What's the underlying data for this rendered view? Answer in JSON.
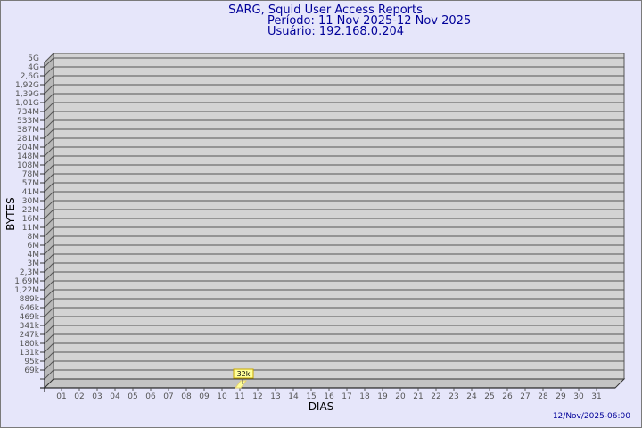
{
  "chart_data": {
    "type": "bar",
    "title": "SARG, Squid User Access Reports",
    "subtitle_lines": [
      "Período: 11 Nov 2025-12 Nov 2025",
      "Usuário: 192.168.0.204"
    ],
    "xlabel": "DIAS",
    "ylabel": "BYTES",
    "y_scale": "log",
    "y_tick_labels": [
      "5G",
      "4G",
      "2,6G",
      "1,92G",
      "1,39G",
      "1,01G",
      "734M",
      "533M",
      "387M",
      "281M",
      "204M",
      "148M",
      "108M",
      "78M",
      "57M",
      "41M",
      "30M",
      "22M",
      "16M",
      "11M",
      "8M",
      "6M",
      "4M",
      "3M",
      "2,3M",
      "1,69M",
      "1,22M",
      "889k",
      "646k",
      "469k",
      "341k",
      "247k",
      "180k",
      "131k",
      "95k",
      "69k"
    ],
    "categories": [
      "01",
      "02",
      "03",
      "04",
      "05",
      "06",
      "07",
      "08",
      "09",
      "10",
      "11",
      "12",
      "13",
      "14",
      "15",
      "16",
      "17",
      "18",
      "19",
      "20",
      "21",
      "22",
      "23",
      "24",
      "25",
      "26",
      "27",
      "28",
      "29",
      "30",
      "31"
    ],
    "bars": [
      {
        "category": "11",
        "value": 32000,
        "label": "32k"
      }
    ],
    "grid": true,
    "colors": {
      "background": "#e6e6fa",
      "plot": "#d3d3d3",
      "bar": "#ffff99",
      "title": "#000099"
    },
    "footer": "12/Nov/2025-06:00"
  }
}
